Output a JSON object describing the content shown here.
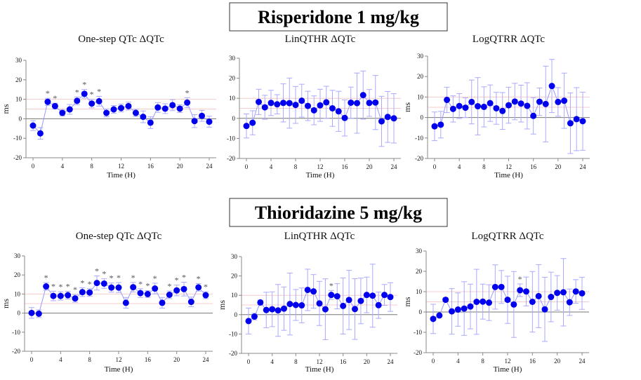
{
  "colors": {
    "marker": "#0000ee",
    "line": "#9999ff",
    "err": "#aaaaff",
    "ref": "#f4cccc",
    "axis": "#888888",
    "text": "#111111"
  },
  "headings": [
    "Risperidone 1 mg/kg",
    "Thioridazine 5 mg/kg"
  ],
  "chart_data": [
    {
      "type": "line",
      "title": "One-step QTc ΔQTc",
      "xlabel": "Time (H)",
      "ylabel": "ms",
      "ylim": [
        -20,
        30
      ],
      "xlim": [
        0,
        24
      ],
      "xticks": [
        0,
        4,
        8,
        12,
        16,
        20,
        24
      ],
      "yticks": [
        -20,
        -10,
        0,
        10,
        20,
        30
      ],
      "reference_lines": [
        10,
        5
      ],
      "x": [
        0,
        1,
        2,
        3,
        4,
        5,
        6,
        7,
        8,
        9,
        10,
        11,
        12,
        13,
        14,
        15,
        16,
        17,
        18,
        19,
        20,
        21,
        22,
        23,
        24
      ],
      "y": [
        -3.5,
        -7.5,
        8.7,
        6.5,
        3,
        4.8,
        9.2,
        12.8,
        7.8,
        9,
        3,
        4.8,
        5.5,
        6.5,
        3,
        1,
        -2,
        5.8,
        5.2,
        7,
        5.2,
        8.3,
        -1.2,
        1.5,
        -1.5
      ],
      "err": [
        2.5,
        3,
        1.8,
        1.5,
        1.5,
        2.5,
        2,
        2.2,
        2.2,
        2.5,
        2,
        2,
        2,
        2,
        1.8,
        3,
        3,
        2.5,
        2.5,
        2.8,
        2,
        2.5,
        3.3,
        2.8,
        2.8
      ],
      "significant": [
        2,
        3,
        6,
        7,
        8,
        9,
        21
      ]
    },
    {
      "type": "line",
      "title": "LinQTHR ΔQTc",
      "xlabel": "Time (H)",
      "ylabel": "",
      "ylim": [
        -20,
        30
      ],
      "xlim": [
        0,
        24
      ],
      "xticks": [
        0,
        4,
        8,
        12,
        16,
        20,
        24
      ],
      "yticks": [
        -20,
        -10,
        0,
        10,
        20,
        30
      ],
      "reference_lines": [
        10,
        5
      ],
      "x": [
        0,
        1,
        2,
        3,
        4,
        5,
        6,
        7,
        8,
        9,
        10,
        11,
        12,
        13,
        14,
        15,
        16,
        17,
        18,
        19,
        20,
        21,
        22,
        23,
        24
      ],
      "y": [
        -3.8,
        -2.2,
        8.2,
        5.5,
        7.7,
        7,
        7.7,
        7.6,
        6.7,
        8.8,
        6.2,
        4,
        6.5,
        8,
        5,
        3.5,
        0.2,
        7.8,
        7.6,
        11.6,
        7.7,
        7.9,
        -1.5,
        0.7,
        0
      ],
      "err": [
        6,
        6,
        6.3,
        6,
        6.3,
        4.8,
        9.5,
        12.5,
        9.2,
        8.2,
        7.3,
        7.2,
        8,
        8,
        9,
        10,
        9,
        7.8,
        15,
        12,
        6.7,
        13.5,
        12.5,
        12.7,
        12.3
      ],
      "significant": []
    },
    {
      "type": "line",
      "title": "LogQTRR ΔQTc",
      "xlabel": "Time (H)",
      "ylabel": "ms",
      "ylim": [
        -20,
        30
      ],
      "xlim": [
        0,
        24
      ],
      "xticks": [
        0,
        4,
        8,
        12,
        16,
        20,
        24
      ],
      "yticks": [
        -20,
        -10,
        0,
        10,
        20,
        30
      ],
      "reference_lines": [
        10,
        5
      ],
      "x": [
        0,
        1,
        2,
        3,
        4,
        5,
        6,
        7,
        8,
        9,
        10,
        11,
        12,
        13,
        14,
        15,
        16,
        17,
        18,
        19,
        20,
        21,
        22,
        23,
        24
      ],
      "y": [
        -4.3,
        -3.5,
        8.6,
        4.2,
        5.6,
        4.8,
        7.6,
        5.5,
        5.2,
        7,
        4.5,
        3.2,
        6,
        7.8,
        6.8,
        5.7,
        0.8,
        7.7,
        6.6,
        15.4,
        7.6,
        8.2,
        -2.8,
        -0.8,
        -1.8
      ],
      "err": [
        7,
        6.5,
        6.2,
        6.4,
        6.1,
        4.8,
        10.7,
        14,
        9.8,
        8.9,
        7.8,
        9,
        8.8,
        8.9,
        9,
        11.3,
        8.9,
        6.7,
        18.5,
        13,
        7,
        13.5,
        14.8,
        15.4,
        14.2
      ],
      "significant": []
    },
    {
      "type": "line",
      "title": "One-step QTc ΔQTc",
      "xlabel": "Time (H)",
      "ylabel": "ms",
      "ylim": [
        -20,
        30
      ],
      "xlim": [
        0,
        24
      ],
      "xticks": [
        0,
        4,
        8,
        12,
        16,
        20,
        24
      ],
      "yticks": [
        -20,
        -10,
        0,
        10,
        20,
        30
      ],
      "reference_lines": [
        10,
        5
      ],
      "x": [
        0,
        1,
        2,
        3,
        4,
        5,
        6,
        7,
        8,
        9,
        10,
        11,
        12,
        13,
        14,
        15,
        16,
        17,
        18,
        19,
        20,
        21,
        22,
        23,
        24
      ],
      "y": [
        0.1,
        -0.3,
        14,
        9,
        9,
        9.4,
        7.7,
        11,
        10.8,
        15.8,
        15.5,
        13.4,
        13.4,
        5.4,
        13.6,
        10.5,
        10,
        12.9,
        5.4,
        9.6,
        11.9,
        12.6,
        5.9,
        13.5,
        9.4
      ],
      "err": [
        2.8,
        2,
        2,
        2.5,
        2.2,
        2,
        2,
        2.3,
        2,
        3.7,
        2.5,
        2.4,
        2.6,
        2.8,
        2.5,
        2.3,
        1.8,
        2.8,
        2.8,
        2,
        2.8,
        3.6,
        2.5,
        2,
        1.8
      ],
      "significant": [
        2,
        3,
        4,
        5,
        6,
        7,
        8,
        9,
        10,
        11,
        12,
        14,
        15,
        16,
        17,
        19,
        20,
        21,
        23,
        24
      ]
    },
    {
      "type": "line",
      "title": "LinQTHR ΔQTc",
      "xlabel": "Time (H)",
      "ylabel": "ms",
      "ylim": [
        -20,
        30
      ],
      "xlim": [
        0,
        24
      ],
      "xticks": [
        0,
        4,
        8,
        12,
        16,
        20,
        24
      ],
      "yticks": [
        -20,
        -10,
        0,
        10,
        20,
        30
      ],
      "reference_lines": [
        10,
        5
      ],
      "x": [
        0,
        1,
        2,
        3,
        4,
        5,
        6,
        7,
        8,
        9,
        10,
        11,
        12,
        13,
        14,
        15,
        16,
        17,
        18,
        19,
        20,
        21,
        22,
        23,
        24
      ],
      "y": [
        -3.3,
        -1,
        6.3,
        2.4,
        2.8,
        2.2,
        3.1,
        5.5,
        5,
        4.8,
        12.8,
        12,
        5.8,
        2.8,
        10.2,
        9.5,
        4.5,
        7.6,
        2.9,
        7.1,
        10.2,
        9.8,
        4.9,
        10.2,
        9.1
      ],
      "err": [
        6.7,
        1.7,
        1.2,
        9.2,
        9,
        13.4,
        11.2,
        16,
        8,
        9,
        10.7,
        8.7,
        11.4,
        15.7,
        2.3,
        6.5,
        14.5,
        15.3,
        15.7,
        11.8,
        9.2,
        16.3,
        6.8,
        5.4,
        7.4
      ],
      "significant": [
        14
      ]
    },
    {
      "type": "line",
      "title": "LogQTRR ΔQTc",
      "xlabel": "Time (H)",
      "ylabel": "ms",
      "ylim": [
        -20,
        30
      ],
      "xlim": [
        0,
        24
      ],
      "xticks": [
        0,
        4,
        8,
        12,
        16,
        20,
        24
      ],
      "yticks": [
        -20,
        -10,
        0,
        10,
        20,
        30
      ],
      "reference_lines": [
        10,
        5
      ],
      "x": [
        0,
        1,
        2,
        3,
        4,
        5,
        6,
        7,
        8,
        9,
        10,
        11,
        12,
        13,
        14,
        15,
        16,
        17,
        18,
        19,
        20,
        21,
        22,
        23,
        24
      ],
      "y": [
        -3.4,
        -1.7,
        6,
        0.3,
        1.2,
        1.7,
        2.7,
        5,
        5.1,
        4.6,
        12.3,
        12.3,
        6,
        3.7,
        10.7,
        10.1,
        5,
        7.8,
        1.3,
        7.4,
        9.4,
        9.7,
        4.8,
        10.1,
        9.2
      ],
      "err": [
        7.2,
        0.5,
        1,
        11.2,
        8.2,
        13.2,
        11,
        16,
        8.6,
        8.8,
        10.9,
        8.1,
        11.6,
        16.2,
        3.1,
        7.1,
        14.9,
        15.5,
        15.8,
        12.2,
        8.5,
        16.6,
        6.5,
        5.8,
        7.9
      ],
      "significant": [
        14
      ]
    }
  ],
  "significance_marker": "*"
}
